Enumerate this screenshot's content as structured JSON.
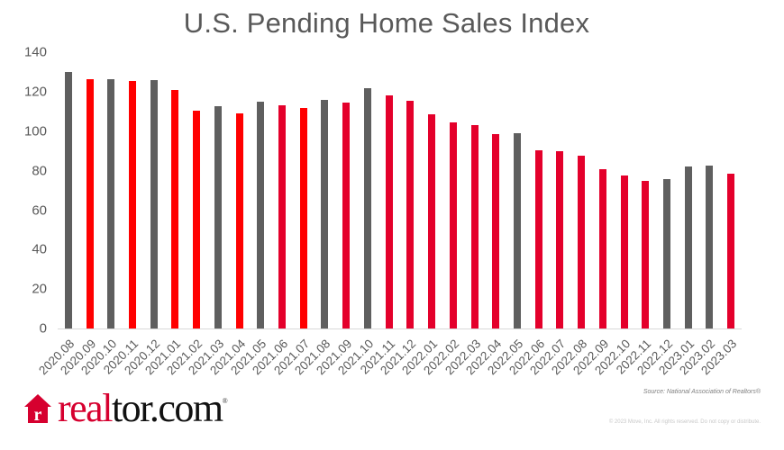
{
  "title": "U.S. Pending Home Sales Index",
  "source": "Source: National Association of Realtors®",
  "copyright": "© 2023 Move, Inc. All rights reserved. Do not copy or distribute.",
  "logo": {
    "real": "real",
    "tor": "tor.com",
    "reg": "®",
    "house_letter": "r",
    "icon": "house-icon"
  },
  "colors": {
    "gray": "#5f5f5f",
    "red": "#ff0000",
    "crimson": "#e4002b",
    "axis": "#d9d9d9",
    "text": "#595959"
  },
  "chart_data": {
    "type": "bar",
    "title": "U.S. Pending Home Sales Index",
    "xlabel": "",
    "ylabel": "",
    "ylim": [
      0,
      140
    ],
    "yticks": [
      0,
      20,
      40,
      60,
      80,
      100,
      120,
      140
    ],
    "grid": false,
    "legend": null,
    "categories": [
      "2020.08",
      "2020.09",
      "2020.10",
      "2020.11",
      "2020.12",
      "2021.01",
      "2021.02",
      "2021.03",
      "2021.04",
      "2021.05",
      "2021.06",
      "2021.07",
      "2021.08",
      "2021.09",
      "2021.10",
      "2021.11",
      "2021.12",
      "2022.01",
      "2022.02",
      "2022.03",
      "2022.04",
      "2022.05",
      "2022.06",
      "2022.07",
      "2022.08",
      "2022.09",
      "2022.10",
      "2022.11",
      "2022.12",
      "2023.01",
      "2023.02",
      "2023.03"
    ],
    "values": [
      130.0,
      126.4,
      126.4,
      125.4,
      125.7,
      120.7,
      110.5,
      112.5,
      108.8,
      114.9,
      113.1,
      111.7,
      115.8,
      114.6,
      121.7,
      118.1,
      115.3,
      108.7,
      104.4,
      102.9,
      98.5,
      99.0,
      90.2,
      89.7,
      87.6,
      80.7,
      77.5,
      75.0,
      75.9,
      82.2,
      82.6,
      78.3
    ],
    "bar_colors": [
      "gray",
      "red",
      "gray",
      "red",
      "gray",
      "red",
      "red",
      "gray",
      "red",
      "gray",
      "crimson",
      "red",
      "gray",
      "crimson",
      "gray",
      "crimson",
      "crimson",
      "crimson",
      "crimson",
      "crimson",
      "crimson",
      "gray",
      "crimson",
      "crimson",
      "crimson",
      "crimson",
      "crimson",
      "crimson",
      "gray",
      "gray",
      "gray",
      "crimson"
    ],
    "annotation": "Source: National Association of Realtors®"
  }
}
